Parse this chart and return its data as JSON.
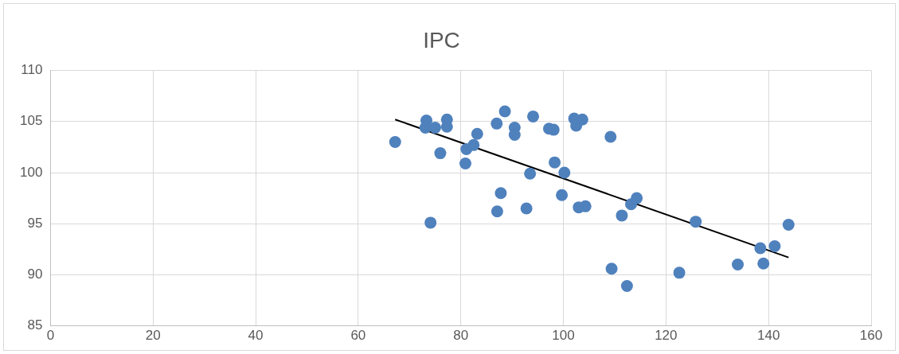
{
  "chart_data": {
    "type": "scatter",
    "title": "IPC",
    "xlim": [
      0,
      160
    ],
    "xticks": [
      0,
      20,
      40,
      60,
      80,
      100,
      120,
      140,
      160
    ],
    "ylim": [
      85,
      110
    ],
    "yticks": [
      85,
      90,
      95,
      100,
      105,
      110
    ],
    "grid": true,
    "legend": false,
    "marker": "circle",
    "series": [
      {
        "color": "#4f81bd",
        "x": [
          67.2,
          73.1,
          73.3,
          75.0,
          76.0,
          77.3,
          77.3,
          74.1,
          80.9,
          81.1,
          82.5,
          83.2,
          87.0,
          88.6,
          90.5,
          90.5,
          94.1,
          93.5,
          87.8,
          87.1,
          92.8,
          97.2,
          98.1,
          98.3,
          100.2,
          99.7,
          102.1,
          102.5,
          103.7,
          103.0,
          104.3,
          109.2,
          109.4,
          111.4,
          113.2,
          114.3,
          112.4,
          125.8,
          122.6,
          134.0,
          138.4,
          139.0,
          141.2,
          143.9
        ],
        "values": [
          103.0,
          104.4,
          105.1,
          104.4,
          101.9,
          105.2,
          104.5,
          95.1,
          100.9,
          102.3,
          102.7,
          103.8,
          104.8,
          106.0,
          104.4,
          103.7,
          105.5,
          99.9,
          98.0,
          96.2,
          96.5,
          104.3,
          104.2,
          101.0,
          100.0,
          97.8,
          105.3,
          104.6,
          105.2,
          96.6,
          96.7,
          103.5,
          90.6,
          95.8,
          96.9,
          97.5,
          88.9,
          95.2,
          90.2,
          91.0,
          92.6,
          91.1,
          92.8,
          94.9
        ]
      },
      {
        "type": "line",
        "color": "#000000",
        "marker": "none",
        "x": [
          67.2,
          143.9
        ],
        "values": [
          105.2,
          91.7
        ]
      }
    ]
  }
}
